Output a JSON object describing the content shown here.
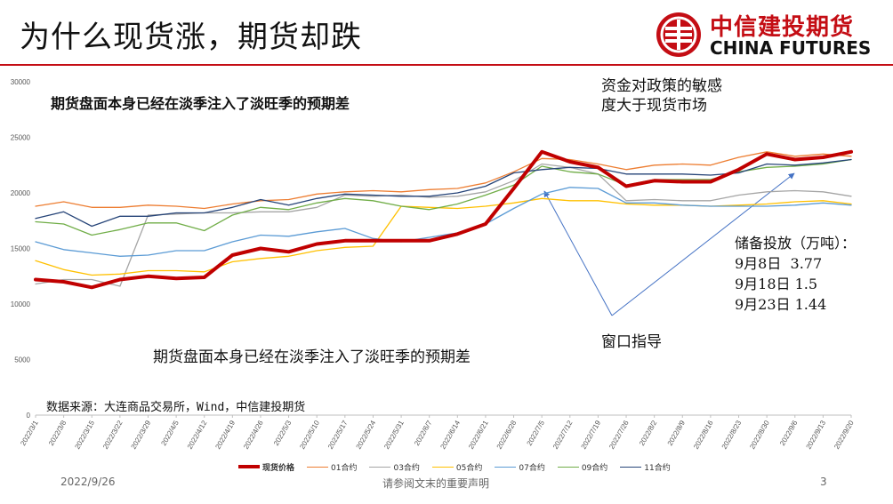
{
  "slide": {
    "title": "为什么现货涨，期货却跌",
    "brand_cn": "中信建投期货",
    "brand_en": "CHINA FUTURES",
    "footer_date": "2022/9/26",
    "footer_note": "请参阅文末的重要声明",
    "page_number": "3"
  },
  "annotations": {
    "top_left": "期货盘面本身已经在淡季注入了淡旺季的预期差",
    "policy": "资金对政策的敏感\n度大于现货市场",
    "reserve": "储备投放（万吨）：\n9月8日  3.77\n9月18日 1.5\n9月23日 1.44",
    "window": "窗口指导",
    "bottom": "期货盘面本身已经在淡季注入了淡旺季的预期差",
    "source": "数据来源：大连商品交易所，Wind，中信建投期货"
  },
  "chart_data": {
    "type": "line",
    "ylim": [
      0,
      30000
    ],
    "yticks": [
      "0",
      "5000",
      "10000",
      "15000",
      "20000",
      "25000",
      "30000"
    ],
    "grid": false,
    "legend_position": "bottom",
    "x_tick_labels": [
      "2022/3/1",
      "2022/3/8",
      "2022/3/15",
      "2022/3/22",
      "2022/3/29",
      "2022/4/5",
      "2022/4/12",
      "2022/4/19",
      "2022/4/26",
      "2022/5/3",
      "2022/5/10",
      "2022/5/17",
      "2022/5/24",
      "2022/5/31",
      "2022/6/7",
      "2022/6/14",
      "2022/6/21",
      "2022/6/28",
      "2022/7/5",
      "2022/7/12",
      "2022/7/19",
      "2022/7/26",
      "2022/8/2",
      "2022/8/9",
      "2022/8/16",
      "2022/8/23",
      "2022/8/30",
      "2022/9/6",
      "2022/9/13",
      "2022/9/20"
    ],
    "x_dates": [
      "3/1",
      "3/8",
      "3/15",
      "3/22",
      "3/29",
      "4/5",
      "4/12",
      "4/19",
      "4/26",
      "5/3",
      "5/10",
      "5/17",
      "5/24",
      "5/31",
      "6/7",
      "6/14",
      "6/21",
      "6/28",
      "7/5",
      "7/12",
      "7/19",
      "7/26",
      "8/2",
      "8/9",
      "8/16",
      "8/23",
      "8/30",
      "9/6",
      "9/13",
      "9/20"
    ],
    "series": [
      {
        "name": "现货价格",
        "color": "#c00000",
        "width": 4,
        "values": [
          12200,
          12000,
          11500,
          12200,
          12500,
          12300,
          12400,
          14400,
          15000,
          14700,
          15400,
          15700,
          15700,
          15700,
          15700,
          16300,
          17200,
          20400,
          23700,
          22800,
          22300,
          20600,
          21100,
          21000,
          21000,
          22100,
          23500,
          23000,
          23200,
          23700
        ]
      },
      {
        "name": "01合约",
        "color": "#ed7d31",
        "width": 1.3,
        "values": [
          18800,
          19200,
          18700,
          18700,
          18900,
          18800,
          18600,
          19000,
          19300,
          19400,
          19900,
          20100,
          20200,
          20100,
          20300,
          20400,
          20900,
          21900,
          23100,
          23000,
          22600,
          22100,
          22500,
          22600,
          22500,
          23200,
          23700,
          23300,
          23500,
          23300
        ]
      },
      {
        "name": "03合约",
        "color": "#a5a5a5",
        "width": 1.3,
        "values": [
          11800,
          12200,
          12200,
          11600,
          18000,
          18100,
          18200,
          18200,
          18300,
          18300,
          18700,
          19800,
          19700,
          19800,
          19600,
          19700,
          20100,
          21100,
          22600,
          22300,
          21700,
          19300,
          19400,
          19300,
          19300,
          19800,
          20100,
          20200,
          20100,
          19700
        ]
      },
      {
        "name": "05合约",
        "color": "#ffc000",
        "width": 1.3,
        "values": [
          13900,
          13100,
          12600,
          12700,
          13000,
          13000,
          12900,
          13800,
          14100,
          14300,
          14800,
          15100,
          15200,
          18800,
          18700,
          18600,
          18800,
          19100,
          19500,
          19300,
          19300,
          19000,
          18900,
          18900,
          18800,
          18900,
          19000,
          19200,
          19300,
          19000
        ]
      },
      {
        "name": "07合约",
        "color": "#5b9bd5",
        "width": 1.3,
        "values": [
          15600,
          14900,
          14600,
          14300,
          14400,
          14800,
          14800,
          15600,
          16200,
          16100,
          16500,
          16800,
          15900,
          15600,
          16000,
          16400,
          17200,
          18600,
          19900,
          20500,
          20400,
          19100,
          19100,
          18900,
          18800,
          18800,
          18800,
          18900,
          19100,
          18900
        ]
      },
      {
        "name": "09合约",
        "color": "#70ad47",
        "width": 1.3,
        "values": [
          17400,
          17200,
          16200,
          16700,
          17300,
          17300,
          16600,
          18000,
          18700,
          18500,
          19100,
          19500,
          19300,
          18800,
          18500,
          19000,
          19800,
          20700,
          22400,
          21900,
          21700,
          20700,
          21200,
          21200,
          21200,
          21900,
          22300,
          22400,
          22600,
          23000
        ]
      },
      {
        "name": "11合约",
        "color": "#264478",
        "width": 1.3,
        "values": [
          17700,
          18300,
          17000,
          17900,
          17900,
          18200,
          18200,
          18700,
          19400,
          18900,
          19500,
          19900,
          19800,
          19700,
          19700,
          20000,
          20600,
          21800,
          22100,
          22300,
          22200,
          21700,
          21700,
          21700,
          21600,
          21800,
          22600,
          22500,
          22700,
          23000
        ]
      }
    ]
  }
}
